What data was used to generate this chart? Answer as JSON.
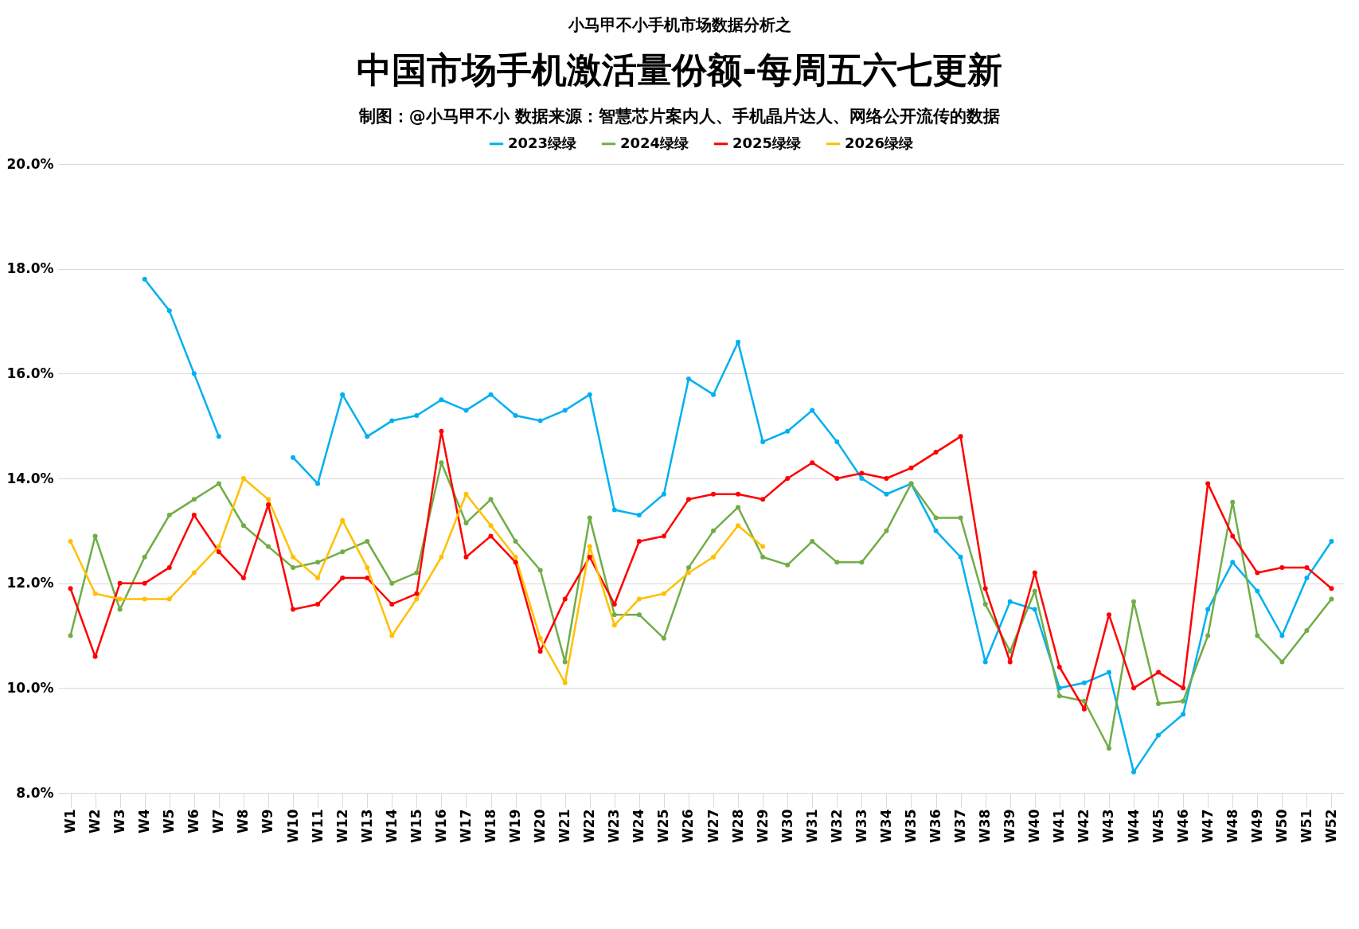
{
  "chart_data": {
    "type": "line",
    "title": "中国市场手机激活量份额-每周五六七更新",
    "subtitle": "制图：@小马甲不小  数据来源：智慧芯片案内人、手机晶片达人、网络公开流传的数据",
    "annotations": [
      "小马甲不小手机市场数据分析之"
    ],
    "categories": [
      "W1",
      "W2",
      "W3",
      "W4",
      "W5",
      "W6",
      "W7",
      "W8",
      "W9",
      "W10",
      "W11",
      "W12",
      "W13",
      "W14",
      "W15",
      "W16",
      "W17",
      "W18",
      "W19",
      "W20",
      "W21",
      "W22",
      "W23",
      "W24",
      "W25",
      "W26",
      "W27",
      "W28",
      "W29",
      "W30",
      "W31",
      "W32",
      "W33",
      "W34",
      "W35",
      "W36",
      "W37",
      "W38",
      "W39",
      "W40",
      "W41",
      "W42",
      "W43",
      "W44",
      "W45",
      "W46",
      "W47",
      "W48",
      "W49",
      "W50",
      "W51",
      "W52"
    ],
    "series": [
      {
        "name": "2023绿绿",
        "color": "#00b0f0",
        "values": [
          null,
          null,
          null,
          17.8,
          17.2,
          16.0,
          14.8,
          null,
          null,
          14.4,
          13.9,
          15.6,
          14.8,
          15.1,
          15.2,
          15.5,
          15.3,
          15.6,
          15.2,
          15.1,
          15.3,
          15.6,
          13.4,
          13.3,
          13.7,
          15.9,
          15.6,
          16.6,
          14.7,
          14.9,
          15.3,
          14.7,
          14.0,
          13.7,
          13.9,
          13.0,
          12.5,
          10.5,
          11.65,
          11.5,
          10.0,
          10.1,
          10.3,
          8.4,
          9.1,
          9.5,
          11.5,
          12.4,
          11.85,
          11.0,
          12.1,
          12.8
        ]
      },
      {
        "name": "2024绿绿",
        "color": "#70ad47",
        "values": [
          11.0,
          12.9,
          11.5,
          12.5,
          13.3,
          13.6,
          13.9,
          13.1,
          12.7,
          12.3,
          12.4,
          12.6,
          12.8,
          12.0,
          12.2,
          14.3,
          13.15,
          13.6,
          12.8,
          12.25,
          10.5,
          13.25,
          11.4,
          11.4,
          10.95,
          12.3,
          13.0,
          13.45,
          12.5,
          12.35,
          12.8,
          12.4,
          12.4,
          13.0,
          13.9,
          13.25,
          13.25,
          11.6,
          10.7,
          11.85,
          9.85,
          9.75,
          8.85,
          11.65,
          9.7,
          9.75,
          11.0,
          13.55,
          11.0,
          10.5,
          11.1,
          11.7
        ]
      },
      {
        "name": "2025绿绿",
        "color": "#ff0000",
        "values": [
          11.9,
          10.6,
          12.0,
          12.0,
          12.3,
          13.3,
          12.6,
          12.1,
          13.5,
          11.5,
          11.6,
          12.1,
          12.1,
          11.6,
          11.8,
          14.9,
          12.5,
          12.9,
          12.4,
          10.7,
          11.7,
          12.5,
          11.6,
          12.8,
          12.9,
          13.6,
          13.7,
          13.7,
          13.6,
          14.0,
          14.3,
          14.0,
          14.1,
          14.0,
          14.2,
          14.5,
          14.8,
          11.9,
          10.5,
          12.2,
          10.4,
          9.6,
          11.4,
          10.0,
          10.3,
          10.0,
          13.9,
          12.9,
          12.2,
          12.3,
          12.3,
          11.9
        ]
      },
      {
        "name": "2026绿绿",
        "color": "#ffc000",
        "values": [
          12.8,
          11.8,
          11.7,
          11.7,
          11.7,
          12.2,
          12.7,
          14.0,
          13.6,
          12.5,
          12.1,
          13.2,
          12.3,
          11.0,
          11.7,
          12.5,
          13.7,
          13.1,
          12.5,
          10.95,
          10.1,
          12.7,
          11.2,
          11.7,
          11.8,
          12.2,
          12.5,
          13.1,
          12.7,
          null,
          null,
          null,
          null,
          null,
          null,
          null,
          null,
          null,
          null,
          null,
          null,
          null,
          null,
          null,
          null,
          null,
          null,
          null,
          null,
          null,
          null,
          null
        ]
      }
    ],
    "ylim": [
      8,
      20
    ],
    "yticks": [
      {
        "value": 8,
        "label": "8.0%"
      },
      {
        "value": 10,
        "label": "10.0%"
      },
      {
        "value": 12,
        "label": "12.0%"
      },
      {
        "value": 14,
        "label": "14.0%"
      },
      {
        "value": 16,
        "label": "16.0%"
      },
      {
        "value": 18,
        "label": "18.0%"
      },
      {
        "value": 20,
        "label": "20.0%"
      }
    ],
    "grid": "y",
    "legend": "top",
    "marker": "circle",
    "line_style": "solid"
  }
}
